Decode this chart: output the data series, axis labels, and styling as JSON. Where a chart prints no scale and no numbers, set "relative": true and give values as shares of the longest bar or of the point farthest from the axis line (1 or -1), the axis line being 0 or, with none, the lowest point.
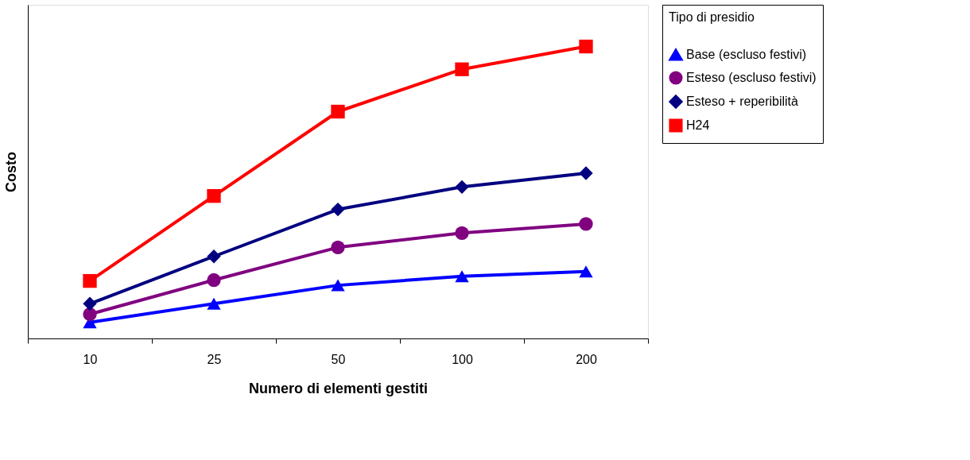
{
  "chart_data": {
    "type": "line",
    "xlabel": "Numero di elementi gestiti",
    "ylabel": "Costo",
    "legend_title": "Tipo di presidio",
    "legend": "right",
    "grid": false,
    "relative": true,
    "line_style": "solid",
    "categories": [
      "10",
      "25",
      "50",
      "100",
      "200"
    ],
    "series": [
      {
        "name": "Base (escluso festivi)",
        "color": "#0000ff",
        "marker": "triangle",
        "values": [
          0.055,
          0.119,
          0.182,
          0.213,
          0.229
        ]
      },
      {
        "name": "Esteso (escluso festivi)",
        "color": "#800080",
        "marker": "circle",
        "values": [
          0.083,
          0.2,
          0.312,
          0.361,
          0.392
        ]
      },
      {
        "name": "Esteso + reperibilità",
        "color": "#000080",
        "marker": "diamond",
        "values": [
          0.119,
          0.281,
          0.442,
          0.519,
          0.566
        ]
      },
      {
        "name": "H24",
        "color": "#ff0000",
        "marker": "square",
        "values": [
          0.197,
          0.488,
          0.777,
          0.922,
          1
        ]
      }
    ]
  }
}
